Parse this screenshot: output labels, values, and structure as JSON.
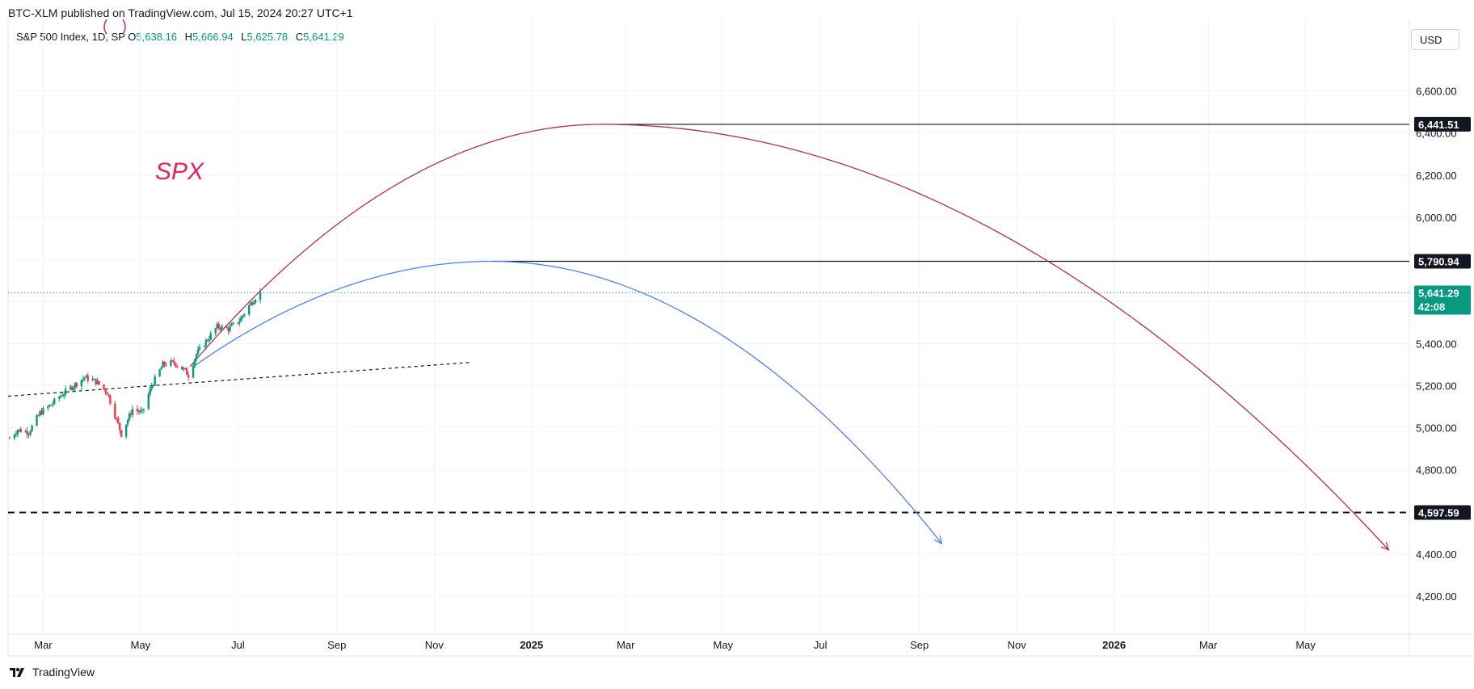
{
  "header": {
    "published_by": "BTC-XLM published on TradingView.com, Jul 15, 2024 20:27 UTC+1"
  },
  "legend": {
    "symbol": "S&P 500 Index, 1D, SP",
    "o_label": "O",
    "o_value": "5,638.16",
    "h_label": "H",
    "h_value": "5,666.94",
    "l_label": "L",
    "l_value": "5,625.78",
    "c_label": "C",
    "c_value": "5,641.29"
  },
  "currency_button": "USD",
  "footer": {
    "brand": "TradingView"
  },
  "colors": {
    "up": "#089981",
    "down": "#f23645",
    "red_curve": "#b2333b",
    "blue_curve": "#4f7ff0",
    "annotation": "#e0245e",
    "last_price": "#089981"
  },
  "chart_data": {
    "type": "candlestick",
    "symbol": "SPX",
    "annotation": "SPX",
    "timeframe": "1D",
    "y_axis": {
      "ticks": [
        4200,
        4400,
        4600,
        4800,
        5000,
        5200,
        5400,
        5600,
        5800,
        6000,
        6200,
        6400,
        6600
      ],
      "tick_labels": [
        "4,200.00",
        "4,400.00",
        "",
        "4,800.00",
        "5,000.00",
        "5,200.00",
        "5,400.00",
        "",
        "",
        "6,000.00",
        "6,200.00",
        "6,400.00",
        "6,600.00"
      ],
      "range": [
        4020,
        6940
      ]
    },
    "x_axis": {
      "ticks": [
        "Mar",
        "May",
        "Jul",
        "Sep",
        "Nov",
        "2025",
        "Mar",
        "May",
        "Jul",
        "Sep",
        "Nov",
        "2026",
        "Mar",
        "May"
      ],
      "bold": [
        false,
        false,
        false,
        false,
        false,
        true,
        false,
        false,
        false,
        false,
        false,
        true,
        false,
        false
      ],
      "tick_dates": [
        "2024-03-01",
        "2024-05-01",
        "2024-07-01",
        "2024-09-01",
        "2024-11-01",
        "2025-01-01",
        "2025-03-01",
        "2025-05-01",
        "2025-07-01",
        "2025-09-01",
        "2025-11-01",
        "2026-01-01",
        "2026-03-01",
        "2026-05-01"
      ],
      "range": [
        "2024-02-08",
        "2026-07-05"
      ]
    },
    "grid": true,
    "price_series_close": [
      [
        "2024-02-09",
        4950
      ],
      [
        "2024-02-14",
        4990
      ],
      [
        "2024-02-21",
        4980
      ],
      [
        "2024-02-28",
        5070
      ],
      [
        "2024-03-06",
        5110
      ],
      [
        "2024-03-13",
        5160
      ],
      [
        "2024-03-20",
        5200
      ],
      [
        "2024-03-27",
        5240
      ],
      [
        "2024-04-03",
        5220
      ],
      [
        "2024-04-10",
        5170
      ],
      [
        "2024-04-15",
        5060
      ],
      [
        "2024-04-19",
        4970
      ],
      [
        "2024-04-26",
        5090
      ],
      [
        "2024-05-02",
        5070
      ],
      [
        "2024-05-08",
        5200
      ],
      [
        "2024-05-15",
        5300
      ],
      [
        "2024-05-22",
        5310
      ],
      [
        "2024-05-29",
        5270
      ],
      [
        "2024-05-31",
        5250
      ],
      [
        "2024-06-05",
        5350
      ],
      [
        "2024-06-12",
        5420
      ],
      [
        "2024-06-18",
        5480
      ],
      [
        "2024-06-25",
        5470
      ],
      [
        "2024-07-02",
        5510
      ],
      [
        "2024-07-08",
        5580
      ],
      [
        "2024-07-12",
        5620
      ],
      [
        "2024-07-15",
        5641.29
      ]
    ],
    "last_price": {
      "value": "5,641.29",
      "countdown": "42:08",
      "y": 5641.29
    },
    "horizontal_lines": [
      {
        "label": "6,441.51",
        "y": 6441.51,
        "style": "solid",
        "from": "2025-02-14"
      },
      {
        "label": "5,790.94",
        "y": 5790.94,
        "style": "solid",
        "from": "2024-12-07"
      },
      {
        "label": "4,597.59",
        "y": 4597.59,
        "style": "dashed",
        "from": "2024-02-08"
      }
    ],
    "trendline_dashed": {
      "from": [
        "2024-02-08",
        5150
      ],
      "to": [
        "2024-11-23",
        5310
      ]
    },
    "arcs": [
      {
        "name": "red",
        "start": [
          "2024-06-01",
          5290
        ],
        "peak": [
          "2025-02-14",
          6441.51
        ],
        "end": [
          "2026-06-22",
          4420
        ]
      },
      {
        "name": "blue",
        "start": [
          "2024-06-03",
          5290
        ],
        "peak": [
          "2024-12-07",
          5790.94
        ],
        "end": [
          "2025-09-15",
          4450
        ]
      }
    ]
  }
}
